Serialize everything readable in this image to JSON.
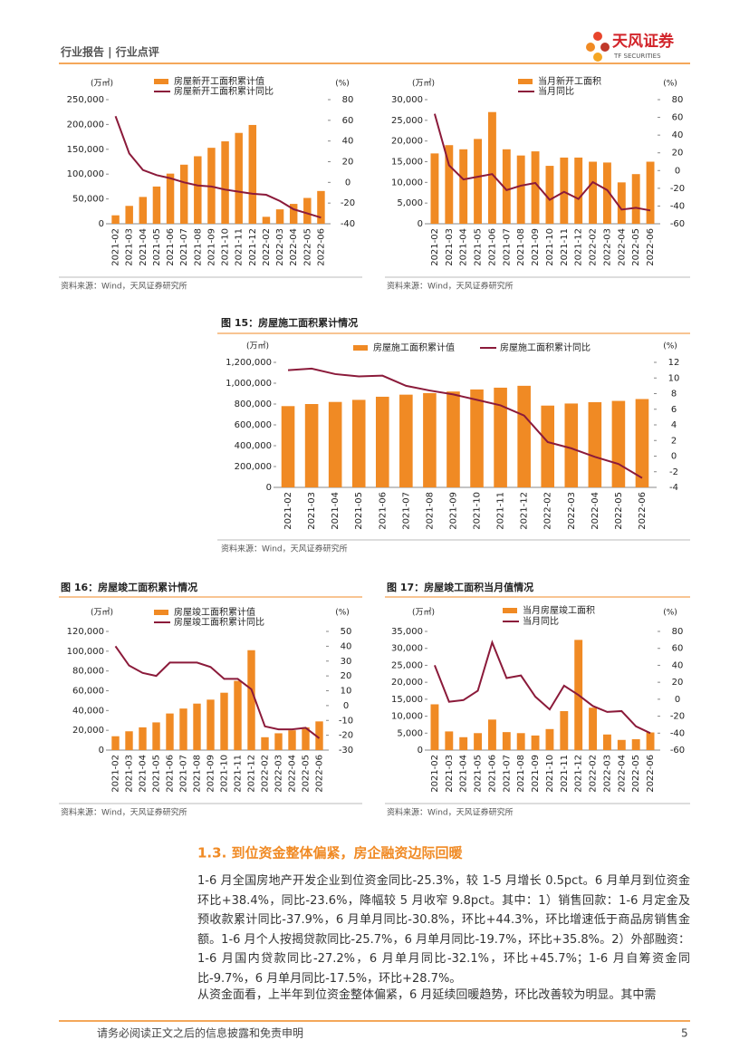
{
  "header": {
    "left": "行业报告 | 行业点评",
    "brand": "天风证券",
    "brand_en": "TF SECURITIES"
  },
  "chart_data": [
    {
      "type": "combo",
      "y_label": "(万㎡)",
      "y2_label": "(%)",
      "categories": [
        "2021-02",
        "2021-03",
        "2021-04",
        "2021-05",
        "2021-06",
        "2021-07",
        "2021-08",
        "2021-09",
        "2021-10",
        "2021-11",
        "2021-12",
        "2022-02",
        "2022-03",
        "2022-04",
        "2022-05",
        "2022-06"
      ],
      "series": [
        {
          "name": "房屋新开工面积累计值",
          "type": "bar",
          "color": "#f08a24",
          "values": [
            17000,
            36000,
            54000,
            75000,
            101000,
            119000,
            136000,
            153000,
            166000,
            183000,
            199000,
            14000,
            29000,
            40000,
            52000,
            66000
          ]
        },
        {
          "name": "房屋新开工面积累计同比",
          "type": "line",
          "axis": "y2",
          "color": "#8b1a3a",
          "values": [
            64,
            28,
            12,
            7,
            4,
            0,
            -3,
            -4,
            -7,
            -9,
            -11,
            -12,
            -18,
            -26,
            -30,
            -34
          ]
        }
      ],
      "ylim": [
        0,
        250000
      ],
      "yticks": [
        0,
        {
          "value": 50000,
          "label": "50,000"
        },
        {
          "value": 100000,
          "label": "100,000"
        },
        {
          "value": 150000,
          "label": "150,000"
        },
        {
          "value": 200000,
          "label": "200,000"
        },
        {
          "value": 250000,
          "label": "250,000"
        }
      ],
      "y2lim": [
        -40,
        80
      ],
      "y2ticks": [
        -40,
        -20,
        0,
        20,
        40,
        60,
        80
      ],
      "source": "资料来源：Wind，天风证券研究所"
    },
    {
      "type": "combo",
      "y_label": "(万㎡)",
      "y2_label": "(%)",
      "categories": [
        "2021-02",
        "2021-03",
        "2021-04",
        "2021-05",
        "2021-06",
        "2021-07",
        "2021-08",
        "2021-09",
        "2021-10",
        "2021-11",
        "2021-12",
        "2022-02",
        "2022-03",
        "2022-04",
        "2022-05",
        "2022-06"
      ],
      "series": [
        {
          "name": "当月新开工面积",
          "type": "bar",
          "color": "#f08a24",
          "values": [
            17000,
            19000,
            18000,
            20500,
            27000,
            18000,
            16500,
            17500,
            14000,
            16000,
            16000,
            15000,
            14800,
            10000,
            12000,
            15000
          ]
        },
        {
          "name": "当月同比",
          "type": "line",
          "axis": "y2",
          "color": "#8b1a3a",
          "values": [
            64,
            6,
            -10,
            -7,
            -4,
            -22,
            -17,
            -14,
            -33,
            -24,
            -32,
            -13,
            -22,
            -44,
            -42,
            -45
          ]
        }
      ],
      "ylim": [
        0,
        30000
      ],
      "yticks": [
        0,
        {
          "value": 5000,
          "label": "5,000"
        },
        {
          "value": 10000,
          "label": "10,000"
        },
        {
          "value": 15000,
          "label": "15,000"
        },
        {
          "value": 20000,
          "label": "20,000"
        },
        {
          "value": 25000,
          "label": "25,000"
        },
        {
          "value": 30000,
          "label": "30,000"
        }
      ],
      "y2lim": [
        -60,
        80
      ],
      "y2ticks": [
        -60,
        -40,
        -20,
        0,
        20,
        40,
        60,
        80
      ],
      "source": "资料来源：Wind，天风证券研究所"
    },
    {
      "type": "combo",
      "title": "图 15：房屋施工面积累计情况",
      "y_label": "(万㎡)",
      "y2_label": "(%)",
      "categories": [
        "2021-02",
        "2021-03",
        "2021-04",
        "2021-05",
        "2021-06",
        "2021-07",
        "2021-08",
        "2021-09",
        "2021-10",
        "2021-11",
        "2021-12",
        "2022-02",
        "2022-03",
        "2022-04",
        "2022-05",
        "2022-06"
      ],
      "series": [
        {
          "name": "房屋施工面积累计值",
          "type": "bar",
          "color": "#f08a24",
          "values": [
            780000,
            800000,
            820000,
            840000,
            870000,
            890000,
            905000,
            920000,
            940000,
            957000,
            975000,
            785000,
            805000,
            818000,
            830000,
            848000
          ]
        },
        {
          "name": "房屋施工面积累计同比",
          "type": "line",
          "axis": "y2",
          "color": "#8b1a3a",
          "values": [
            11.0,
            11.2,
            10.5,
            10.2,
            10.3,
            9.0,
            8.4,
            7.9,
            7.2,
            6.5,
            5.2,
            1.8,
            1.0,
            -0.1,
            -1.0,
            -2.8
          ]
        }
      ],
      "ylim": [
        0,
        1200000
      ],
      "yticks": [
        0,
        {
          "value": 200000,
          "label": "200,000"
        },
        {
          "value": 400000,
          "label": "400,000"
        },
        {
          "value": 600000,
          "label": "600,000"
        },
        {
          "value": 800000,
          "label": "800,000"
        },
        {
          "value": 1000000,
          "label": "1,000,000"
        },
        {
          "value": 1200000,
          "label": "1,200,000"
        }
      ],
      "y2lim": [
        -4,
        12
      ],
      "y2ticks": [
        -4,
        -2,
        0,
        2,
        4,
        6,
        8,
        10,
        12
      ],
      "source": "资料来源：Wind，天风证券研究所"
    },
    {
      "type": "combo",
      "title": "图 16：房屋竣工面积累计情况",
      "y_label": "(万㎡)",
      "y2_label": "(%)",
      "categories": [
        "2021-02",
        "2021-03",
        "2021-04",
        "2021-05",
        "2021-06",
        "2021-07",
        "2021-08",
        "2021-09",
        "2021-10",
        "2021-11",
        "2021-12",
        "2022-02",
        "2022-03",
        "2022-04",
        "2022-05",
        "2022-06"
      ],
      "series": [
        {
          "name": "房屋竣工面积累计值",
          "type": "bar",
          "color": "#f08a24",
          "values": [
            14000,
            19000,
            23000,
            28000,
            37000,
            42000,
            47000,
            51000,
            58000,
            70000,
            101000,
            13000,
            17000,
            20000,
            23000,
            29000
          ]
        },
        {
          "name": "房屋竣工面积累计同比",
          "type": "line",
          "axis": "y2",
          "color": "#8b1a3a",
          "values": [
            40,
            27,
            22,
            20,
            29,
            29,
            29,
            26,
            18,
            18,
            11,
            -14,
            -16,
            -16,
            -15,
            -22
          ]
        }
      ],
      "ylim": [
        0,
        120000
      ],
      "yticks": [
        0,
        {
          "value": 20000,
          "label": "20,000"
        },
        {
          "value": 40000,
          "label": "40,000"
        },
        {
          "value": 60000,
          "label": "60,000"
        },
        {
          "value": 80000,
          "label": "80,000"
        },
        {
          "value": 100000,
          "label": "100,000"
        },
        {
          "value": 120000,
          "label": "120,000"
        }
      ],
      "y2lim": [
        -30,
        50
      ],
      "y2ticks": [
        -30,
        -20,
        -10,
        0,
        10,
        20,
        30,
        40,
        50
      ],
      "source": "资料来源：Wind，天风证券研究所"
    },
    {
      "type": "combo",
      "title": "图 17：房屋竣工面积当月值情况",
      "y_label": "(万㎡)",
      "y2_label": "(%)",
      "categories": [
        "2021-02",
        "2021-03",
        "2021-04",
        "2021-05",
        "2021-06",
        "2021-07",
        "2021-08",
        "2021-09",
        "2021-10",
        "2021-11",
        "2021-12",
        "2022-02",
        "2022-03",
        "2022-04",
        "2022-05",
        "2022-06"
      ],
      "series": [
        {
          "name": "当月房屋竣工面积",
          "type": "bar",
          "color": "#f08a24",
          "values": [
            13500,
            5500,
            3800,
            5000,
            9000,
            5300,
            5000,
            4300,
            6200,
            11500,
            32500,
            12500,
            4600,
            3000,
            3200,
            5200
          ]
        },
        {
          "name": "当月同比",
          "type": "line",
          "axis": "y2",
          "color": "#8b1a3a",
          "values": [
            40,
            -3,
            -1,
            10,
            67,
            25,
            28,
            3,
            -12,
            16,
            5,
            -8,
            -15,
            -14,
            -32,
            -40
          ]
        }
      ],
      "ylim": [
        0,
        35000
      ],
      "yticks": [
        0,
        {
          "value": 5000,
          "label": "5,000"
        },
        {
          "value": 10000,
          "label": "10,000"
        },
        {
          "value": 15000,
          "label": "15,000"
        },
        {
          "value": 20000,
          "label": "20,000"
        },
        {
          "value": 25000,
          "label": "25,000"
        },
        {
          "value": 30000,
          "label": "30,000"
        },
        {
          "value": 35000,
          "label": "35,000"
        }
      ],
      "y2lim": [
        -60,
        80
      ],
      "y2ticks": [
        -60,
        -40,
        -20,
        0,
        20,
        40,
        60,
        80
      ],
      "source": "资料来源：Wind，天风证券研究所"
    }
  ],
  "section": {
    "heading": "1.3. 到位资金整体偏紧，房企融资边际回暖",
    "paragraphs": [
      "1-6 月全国房地产开发企业到位资金同比-25.3%，较 1-5 月增长 0.5pct。6 月单月到位资金环比+38.4%，同比-23.6%，降幅较 5 月收窄 9.8pct。其中：1）销售回款：1-6 月定金及预收款累计同比-37.9%，6 月单月同比-30.8%，环比+44.3%，环比增速低于商品房销售金额。1-6 月个人按揭贷款同比-25.7%，6 月单月同比-19.7%，环比+35.8%。2）外部融资：1-6 月国内贷款同比-27.2%，6 月单月同比-32.1%，环比+45.7%；1-6 月自筹资金同比-9.7%，6 月单月同比-17.5%，环比+28.7%。",
      "从资金面看，上半年到位资金整体偏紧，6 月延续回暖趋势，环比改善较为明显。其中需"
    ]
  },
  "footer": {
    "disclaimer": "请务必阅读正文之后的信息披露和免责申明",
    "page": "5"
  }
}
